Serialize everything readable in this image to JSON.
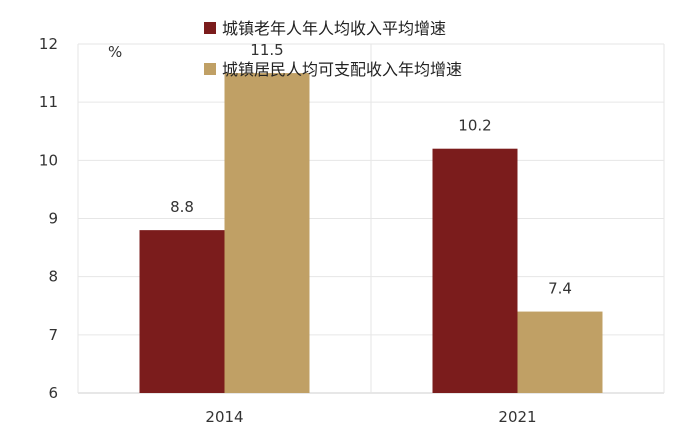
{
  "chart_data": {
    "type": "bar",
    "title": "",
    "xlabel": "",
    "ylabel": "",
    "unit": "%",
    "categories": [
      "2014",
      "2021"
    ],
    "series": [
      {
        "name": "城镇老年人年人均收入平均增速",
        "values": [
          8.8,
          10.2
        ],
        "color": "#7B1C1C"
      },
      {
        "name": "城镇居民人均可支配收入年均增速",
        "values": [
          11.5,
          7.4
        ],
        "color": "#C0A065"
      }
    ],
    "ylim": [
      6,
      12
    ],
    "yticks": [
      "6",
      "7",
      "8",
      "9",
      "10",
      "11",
      "12"
    ],
    "data_labels": [
      [
        "8.8",
        "10.2"
      ],
      [
        "11.5",
        "7.4"
      ]
    ],
    "grid": true,
    "legend_position": "top-center"
  }
}
